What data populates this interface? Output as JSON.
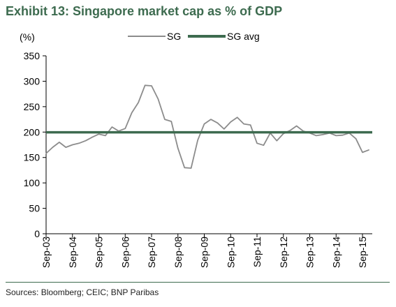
{
  "exhibit_title": "Exhibit 13: Singapore market cap as % of GDP",
  "source_note": "Sources: Bloomberg; CEIC; BNP Paribas",
  "colors": {
    "title": "#3d6b4f",
    "sg_line": "#8c8c8c",
    "sg_avg_line": "#3d6b4f",
    "axis": "#000000"
  },
  "chart_data": {
    "type": "line",
    "title": "Exhibit 13: Singapore market cap as % of GDP",
    "ylabel": "(%)",
    "xlabel": "",
    "ylim": [
      0,
      350
    ],
    "y_ticks": [
      0,
      50,
      100,
      150,
      200,
      250,
      300,
      350
    ],
    "x_ticks": [
      "Sep-03",
      "Sep-04",
      "Sep-05",
      "Sep-06",
      "Sep-07",
      "Sep-08",
      "Sep-09",
      "Sep-10",
      "Sep-11",
      "Sep-12",
      "Sep-13",
      "Sep-14",
      "Sep-15"
    ],
    "grid": false,
    "legend": "top-center",
    "series": [
      {
        "name": "SG",
        "kind": "line",
        "x": [
          "Sep-03",
          "Dec-03",
          "Mar-04",
          "Jun-04",
          "Sep-04",
          "Dec-04",
          "Mar-05",
          "Jun-05",
          "Sep-05",
          "Dec-05",
          "Mar-06",
          "Jun-06",
          "Sep-06",
          "Dec-06",
          "Mar-07",
          "Jun-07",
          "Sep-07",
          "Dec-07",
          "Mar-08",
          "Jun-08",
          "Sep-08",
          "Dec-08",
          "Mar-09",
          "Jun-09",
          "Sep-09",
          "Dec-09",
          "Mar-10",
          "Jun-10",
          "Sep-10",
          "Dec-10",
          "Mar-11",
          "Jun-11",
          "Sep-11",
          "Dec-11",
          "Mar-12",
          "Jun-12",
          "Sep-12",
          "Dec-12",
          "Mar-13",
          "Jun-13",
          "Sep-13",
          "Dec-13",
          "Mar-14",
          "Jun-14",
          "Sep-14",
          "Dec-14",
          "Mar-15",
          "Jun-15",
          "Sep-15",
          "Dec-15"
        ],
        "values": [
          158,
          170,
          180,
          170,
          175,
          178,
          183,
          190,
          196,
          193,
          210,
          202,
          207,
          238,
          258,
          292,
          291,
          265,
          225,
          221,
          168,
          130,
          129,
          184,
          216,
          225,
          218,
          206,
          220,
          229,
          216,
          214,
          178,
          174,
          198,
          183,
          197,
          203,
          212,
          202,
          198,
          193,
          195,
          198,
          193,
          194,
          198,
          187,
          160,
          165
        ]
      },
      {
        "name": "SG avg",
        "kind": "line",
        "x": [
          "Sep-03",
          "Dec-15"
        ],
        "values": [
          199.5,
          199.5
        ]
      }
    ]
  }
}
